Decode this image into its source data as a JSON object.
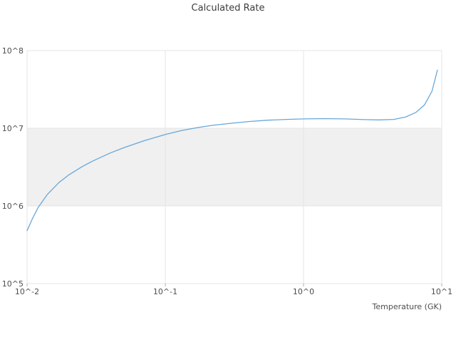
{
  "chart_data": {
    "type": "line",
    "title": "Calculated Rate",
    "xlabel": "Temperature (GK)",
    "ylabel": "",
    "x_scale": "log",
    "y_scale": "log",
    "xlim": [
      0.01,
      10
    ],
    "ylim": [
      100000,
      100000000
    ],
    "grid": true,
    "legend": "none",
    "x_ticks": [
      0.01,
      0.1,
      1,
      10
    ],
    "x_tick_labels": [
      "10^-2",
      "10^-1",
      "10^0",
      "10^1"
    ],
    "y_ticks": [
      100000,
      1000000,
      10000000,
      100000000
    ],
    "y_tick_labels": [
      "10^5",
      "10^6",
      "10^7",
      "10^8"
    ],
    "band": {
      "y_min": 1000000,
      "y_max": 10000000,
      "color": "#f0f0f0"
    },
    "colors": {
      "line": "#68a7d8",
      "grid": "#e5e5e5",
      "tick": "#b0b0b0",
      "text": "#4d4d4d",
      "background": "#ffffff"
    },
    "series": [
      {
        "name": "Calculated Rate",
        "color": "#68a7d8",
        "x": [
          0.01,
          0.011,
          0.012,
          0.014,
          0.017,
          0.02,
          0.025,
          0.03,
          0.04,
          0.05,
          0.07,
          0.1,
          0.13,
          0.17,
          0.22,
          0.3,
          0.4,
          0.55,
          0.75,
          1.0,
          1.4,
          2.0,
          2.8,
          3.5,
          4.5,
          5.5,
          6.5,
          7.5,
          8.5,
          9.3
        ],
        "y": [
          480000,
          700000,
          950000,
          1400000,
          2000000,
          2500000,
          3200000,
          3800000,
          4800000,
          5600000,
          6900000,
          8300000,
          9300000,
          10200000,
          10900000,
          11600000,
          12200000,
          12700000,
          13000000,
          13200000,
          13300000,
          13200000,
          12900000,
          12800000,
          13000000,
          14000000,
          16000000,
          20000000,
          30000000,
          56000000
        ]
      }
    ]
  }
}
